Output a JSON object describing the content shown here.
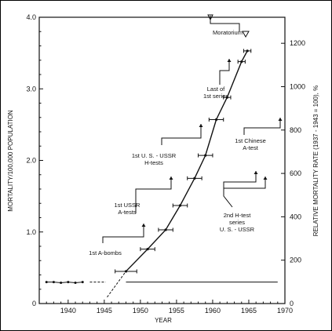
{
  "chart_data": {
    "type": "line",
    "xlabel": "YEAR",
    "ylabel": "MORTALITY/100,000 POPULATION",
    "y2label": "RELATIVE MORTALITY RATE (1937 - 1943 = 100), %",
    "xlim": [
      1936,
      1970
    ],
    "ylim": [
      0,
      4.0
    ],
    "y2lim": [
      0,
      1320
    ],
    "x_ticks": [
      "1940",
      "1945",
      "1950",
      "1955",
      "1960",
      "1965",
      "1970"
    ],
    "y_ticks": [
      "0",
      "1.0",
      "2.0",
      "3.0",
      "4.0"
    ],
    "y2_ticks": [
      "0",
      "200",
      "400",
      "600",
      "800",
      "1000",
      "1200"
    ],
    "baseline_level": 0.3,
    "baseline_points": [
      {
        "x": 1937,
        "y": 0.3
      },
      {
        "x": 1938,
        "y": 0.3
      },
      {
        "x": 1939,
        "y": 0.29
      },
      {
        "x": 1940,
        "y": 0.3
      },
      {
        "x": 1941,
        "y": 0.29
      },
      {
        "x": 1942,
        "y": 0.3
      }
    ],
    "rise_points": [
      {
        "x": 1948,
        "y": 0.45,
        "xerr": 1.5
      },
      {
        "x": 1951,
        "y": 0.76,
        "xerr": 1.0
      },
      {
        "x": 1953.5,
        "y": 1.03,
        "xerr": 1.0
      },
      {
        "x": 1955.5,
        "y": 1.37,
        "xerr": 1.0
      },
      {
        "x": 1957.5,
        "y": 1.75,
        "xerr": 1.0
      },
      {
        "x": 1959,
        "y": 2.07,
        "xerr": 1.0
      },
      {
        "x": 1960.5,
        "y": 2.57,
        "xerr": 1.0
      },
      {
        "x": 1962,
        "y": 2.88,
        "xerr": 0.5
      },
      {
        "x": 1964,
        "y": 3.38,
        "xerr": 0.5
      },
      {
        "x": 1964.8,
        "y": 3.53,
        "xerr": 0.5
      }
    ],
    "annotations": [
      {
        "lines": [
          "1st A-bombs"
        ],
        "x": 1946.5
      },
      {
        "lines": [
          "1st USSR",
          "A-tests"
        ],
        "x": 1949
      },
      {
        "lines": [
          "1st U. S. - USSR",
          "H-tests"
        ],
        "x": 1953
      },
      {
        "lines": [
          "Last of",
          "1st series"
        ],
        "x": 1958
      },
      {
        "lines": [
          "1st Chinese",
          "A-test"
        ],
        "x": 1964
      },
      {
        "lines": [
          "2nd H-test",
          "series",
          "U. S. - USSR"
        ],
        "x": 1961.5
      },
      {
        "lines": [
          "Moratorium"
        ],
        "x": 1963
      }
    ]
  }
}
